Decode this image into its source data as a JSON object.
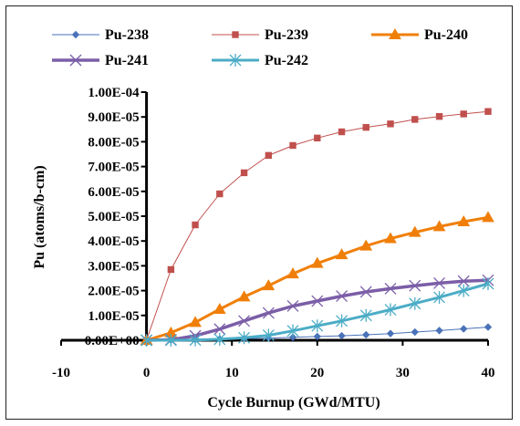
{
  "chart_data": {
    "type": "line",
    "title": "",
    "xlabel": "Cycle Burnup (GWd/MTU)",
    "ylabel": "Pu (atoms/b-cm)",
    "xlim": [
      -10,
      40
    ],
    "ylim": [
      0,
      0.0001
    ],
    "x_ticks": [
      "-10",
      "0",
      "10",
      "20",
      "30",
      "40"
    ],
    "x_tick_values": [
      -10,
      0,
      10,
      20,
      30,
      40
    ],
    "y_ticks": [
      "0.00E+00",
      "1.00E-05",
      "2.00E-05",
      "3.00E-05",
      "4.00E-05",
      "5.00E-05",
      "6.00E-05",
      "7.00E-05",
      "8.00E-05",
      "9.00E-05",
      "1.00E-04"
    ],
    "y_tick_values": [
      0,
      1e-05,
      2e-05,
      3e-05,
      4e-05,
      5e-05,
      6e-05,
      7e-05,
      8e-05,
      9e-05,
      0.0001
    ],
    "grid": false,
    "legend_position": "top",
    "x": [
      0,
      2.86,
      5.71,
      8.57,
      11.43,
      14.29,
      17.14,
      20,
      22.86,
      25.71,
      28.57,
      31.43,
      34.29,
      37.14,
      40
    ],
    "series": [
      {
        "name": "Pu-238",
        "color": "#4a72b8",
        "marker": "diamond",
        "line_width": 1,
        "values": [
          0,
          1e-07,
          3e-07,
          5e-07,
          7e-07,
          9e-07,
          1.2e-06,
          1.5e-06,
          1.8e-06,
          2.2e-06,
          2.7e-06,
          3.3e-06,
          3.9e-06,
          4.6e-06,
          5.3e-06
        ]
      },
      {
        "name": "Pu-239",
        "color": "#c0504d",
        "marker": "square",
        "line_width": 1,
        "values": [
          0,
          2.85e-05,
          4.65e-05,
          5.9e-05,
          6.75e-05,
          7.45e-05,
          7.85e-05,
          8.15e-05,
          8.4e-05,
          8.58e-05,
          8.72e-05,
          8.9e-05,
          9.02e-05,
          9.12e-05,
          9.22e-05
        ]
      },
      {
        "name": "Pu-240",
        "color": "#f07f09",
        "marker": "triangle",
        "line_width": 3,
        "values": [
          0,
          3e-06,
          7.2e-06,
          1.25e-05,
          1.75e-05,
          2.2e-05,
          2.68e-05,
          3.1e-05,
          3.45e-05,
          3.8e-05,
          4.1e-05,
          4.35e-05,
          4.58e-05,
          4.78e-05,
          4.95e-05
        ]
      },
      {
        "name": "Pu-241",
        "color": "#7b5ea7",
        "marker": "x",
        "line_width": 3.5,
        "values": [
          0,
          2e-07,
          1.8e-06,
          4.5e-06,
          7.8e-06,
          1.1e-05,
          1.38e-05,
          1.58e-05,
          1.78e-05,
          1.95e-05,
          2.08e-05,
          2.2e-05,
          2.3e-05,
          2.38e-05,
          2.42e-05
        ]
      },
      {
        "name": "Pu-242",
        "color": "#4bacc6",
        "marker": "asterisk",
        "line_width": 3,
        "values": [
          0,
          0,
          1e-07,
          4e-07,
          1e-06,
          2e-06,
          3.8e-06,
          5.8e-06,
          7.8e-06,
          1e-05,
          1.23e-05,
          1.48e-05,
          1.73e-05,
          2e-05,
          2.28e-05
        ]
      }
    ]
  }
}
